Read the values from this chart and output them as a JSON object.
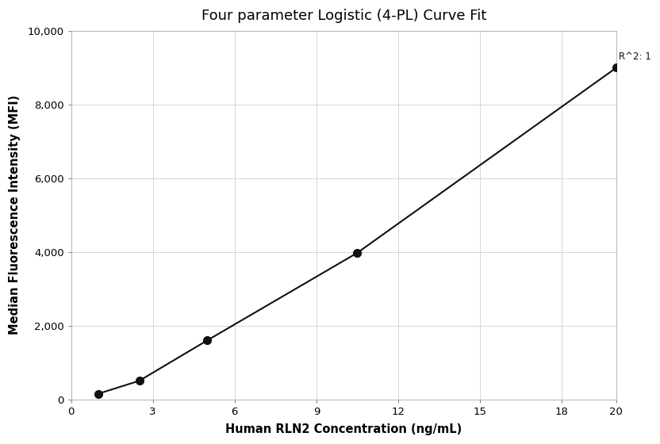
{
  "title": "Four parameter Logistic (4-PL) Curve Fit",
  "xlabel": "Human RLN2 Concentration (ng/mL)",
  "ylabel": "Median Fluorescence Intensity (MFI)",
  "x_data": [
    1.0,
    2.5,
    5.0,
    10.5,
    20.0
  ],
  "y_data": [
    150,
    500,
    1600,
    3975,
    9000
  ],
  "xlim": [
    0,
    20
  ],
  "ylim": [
    0,
    10000
  ],
  "xticks": [
    0,
    3,
    6,
    9,
    12,
    15,
    18,
    20
  ],
  "yticks": [
    0,
    2000,
    4000,
    6000,
    8000,
    10000
  ],
  "ytick_labels": [
    "0",
    "2,000",
    "4,000",
    "6,000",
    "8,000",
    "10,000"
  ],
  "annotation_text": "R^2: 1",
  "line_color": "#111111",
  "marker_color": "#111111",
  "grid_color": "#c8d8e8",
  "bg_color": "#ffffff",
  "title_fontsize": 13,
  "label_fontsize": 10.5,
  "tick_fontsize": 9.5,
  "annotation_fontsize": 8.5,
  "marker_size": 7,
  "line_width": 1.5
}
